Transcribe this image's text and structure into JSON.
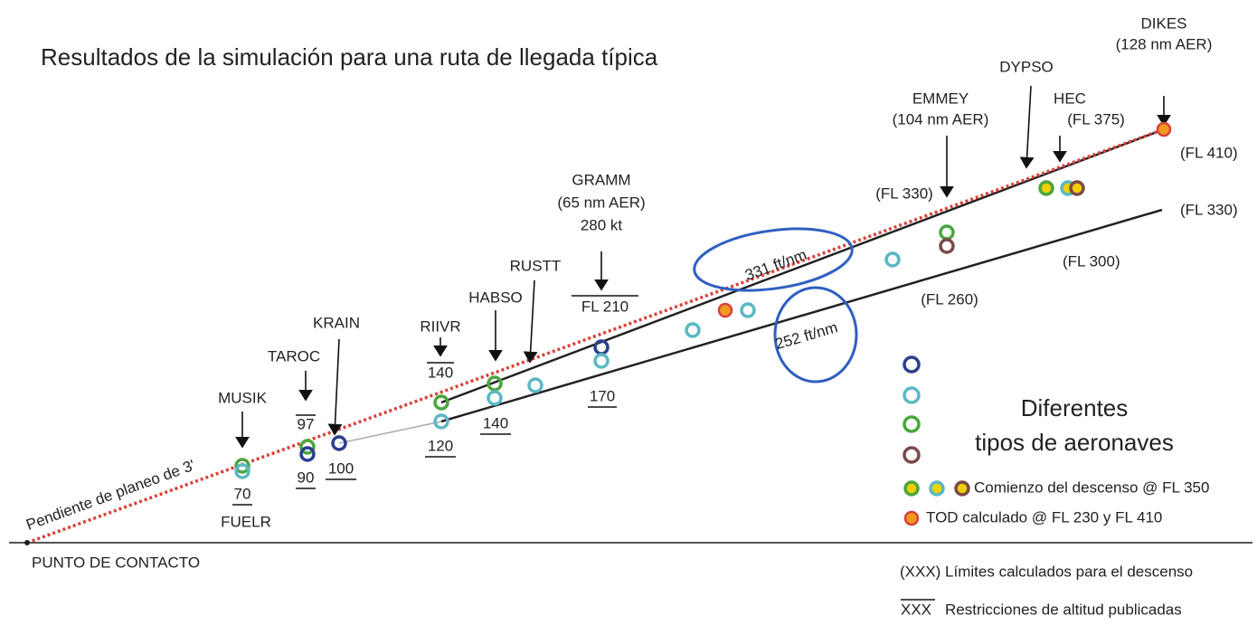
{
  "title": "Resultados de la simulación para una ruta de llegada típica",
  "waypoints": [
    {
      "name": "DIKES",
      "note": "(128 nm AER)"
    },
    {
      "name": "DYPSO"
    },
    {
      "name": "EMMEY",
      "note": "(104 nm AER)"
    },
    {
      "name": "HEC",
      "note": "(FL 375)"
    },
    {
      "name": "GRAMM",
      "note": "(65 nm AER)",
      "speed": "280 kt"
    },
    {
      "name": "RUSTT"
    },
    {
      "name": "HABSO"
    },
    {
      "name": "RIIVR"
    },
    {
      "name": "KRAIN"
    },
    {
      "name": "TAROC"
    },
    {
      "name": "MUSIK"
    },
    {
      "name": "FUELR"
    }
  ],
  "altitudes": [
    "(FL 410)",
    "(FL 330)",
    "(FL 330)",
    "(FL 300)",
    "(FL 260)",
    "FL 210",
    "140",
    "97",
    "170",
    "140",
    "120",
    "100",
    "90",
    "70"
  ],
  "slopes": [
    "331 ft/nm",
    "252 ft/nm",
    "Pendiente de planeo de 3'"
  ],
  "touchdown": "PUNTO DE CONTACTO",
  "legend": {
    "title": [
      "Diferentes",
      "tipos de aeronaves"
    ],
    "start": "Comienzo del descenso @ FL 350",
    "tod": "TOD calculado @ FL 230 y FL 410",
    "calc": "(XXX) Límites calculados para el descenso",
    "pub_symbol": "XXX",
    "pub": "Restricciones de altitud publicadas"
  }
}
